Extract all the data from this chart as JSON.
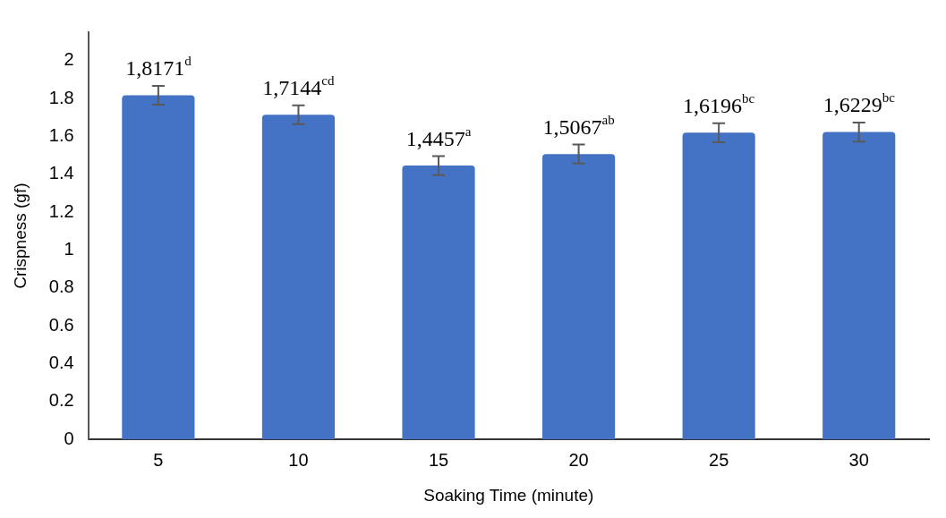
{
  "chart_data": {
    "type": "bar",
    "xlabel": "Soaking Time (minute)",
    "ylabel": "Crispness (gf)",
    "categories": [
      "5",
      "10",
      "15",
      "20",
      "25",
      "30"
    ],
    "values": [
      1.8171,
      1.7144,
      1.4457,
      1.5067,
      1.6196,
      1.6229
    ],
    "errors": [
      0.05,
      0.05,
      0.05,
      0.05,
      0.05,
      0.05
    ],
    "value_labels": [
      "1,8171$^{d}$",
      "1,7144$^{cd}$",
      "1,4457$^{a}$",
      "1,5067$^{ab}$",
      "1,6196$^{bc}$",
      "1,6229$^{bc}$"
    ],
    "color": "#4472c4",
    "ylim": [
      0,
      2.15
    ],
    "yticks": [
      0,
      0.2,
      0.4,
      0.6,
      0.8,
      1,
      1.2,
      1.4,
      1.6,
      1.8,
      2
    ],
    "grid": false,
    "legend": false
  }
}
